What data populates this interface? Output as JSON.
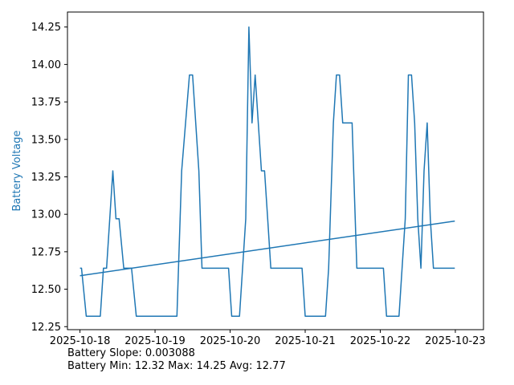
{
  "chart_data": {
    "type": "line",
    "xlabel": "",
    "ylabel": "Battery Voltage",
    "ylim": [
      12.23,
      14.35
    ],
    "xlim": [
      "2025-10-17 20:00",
      "2025-10-23 09:00"
    ],
    "x_ticks": [
      "2025-10-18",
      "2025-10-19",
      "2025-10-20",
      "2025-10-21",
      "2025-10-22",
      "2025-10-23"
    ],
    "y_ticks": [
      "12.25",
      "12.50",
      "12.75",
      "13.00",
      "13.25",
      "13.50",
      "13.75",
      "14.00",
      "14.25"
    ],
    "grid": false,
    "line_color": "#1f77b4",
    "series": [
      {
        "points": [
          [
            "2025-10-18 00:00",
            12.64
          ],
          [
            "2025-10-18 00:30",
            12.64
          ],
          [
            "2025-10-18 02:00",
            12.32
          ],
          [
            "2025-10-18 06:30",
            12.32
          ],
          [
            "2025-10-18 07:30",
            12.64
          ],
          [
            "2025-10-18 08:30",
            12.64
          ],
          [
            "2025-10-18 10:30",
            13.29
          ],
          [
            "2025-10-18 11:30",
            12.97
          ],
          [
            "2025-10-18 12:30",
            12.97
          ],
          [
            "2025-10-18 14:00",
            12.64
          ],
          [
            "2025-10-18 16:30",
            12.64
          ],
          [
            "2025-10-18 18:00",
            12.32
          ],
          [
            "2025-10-19 07:00",
            12.32
          ],
          [
            "2025-10-19 08:30",
            13.29
          ],
          [
            "2025-10-19 11:00",
            13.93
          ],
          [
            "2025-10-19 12:00",
            13.93
          ],
          [
            "2025-10-19 14:00",
            13.29
          ],
          [
            "2025-10-19 15:00",
            12.64
          ],
          [
            "2025-10-19 23:30",
            12.64
          ],
          [
            "2025-10-20 00:30",
            12.32
          ],
          [
            "2025-10-20 03:00",
            12.32
          ],
          [
            "2025-10-20 05:00",
            12.97
          ],
          [
            "2025-10-20 06:00",
            14.25
          ],
          [
            "2025-10-20 07:00",
            13.61
          ],
          [
            "2025-10-20 08:00",
            13.93
          ],
          [
            "2025-10-20 10:00",
            13.29
          ],
          [
            "2025-10-20 11:00",
            13.29
          ],
          [
            "2025-10-20 12:00",
            12.97
          ],
          [
            "2025-10-20 13:00",
            12.64
          ],
          [
            "2025-10-20 23:00",
            12.64
          ],
          [
            "2025-10-21 00:00",
            12.32
          ],
          [
            "2025-10-21 06:30",
            12.32
          ],
          [
            "2025-10-21 07:30",
            12.64
          ],
          [
            "2025-10-21 09:00",
            13.61
          ],
          [
            "2025-10-21 10:00",
            13.93
          ],
          [
            "2025-10-21 11:00",
            13.93
          ],
          [
            "2025-10-21 12:00",
            13.61
          ],
          [
            "2025-10-21 15:00",
            13.61
          ],
          [
            "2025-10-21 16:00",
            12.97
          ],
          [
            "2025-10-21 16:30",
            12.64
          ],
          [
            "2025-10-22 01:00",
            12.64
          ],
          [
            "2025-10-22 02:00",
            12.32
          ],
          [
            "2025-10-22 06:00",
            12.32
          ],
          [
            "2025-10-22 08:00",
            12.97
          ],
          [
            "2025-10-22 09:00",
            13.93
          ],
          [
            "2025-10-22 10:00",
            13.93
          ],
          [
            "2025-10-22 11:00",
            13.61
          ],
          [
            "2025-10-22 12:00",
            12.97
          ],
          [
            "2025-10-22 13:00",
            12.64
          ],
          [
            "2025-10-22 14:00",
            13.29
          ],
          [
            "2025-10-22 15:00",
            13.61
          ],
          [
            "2025-10-22 16:00",
            12.97
          ],
          [
            "2025-10-22 17:00",
            12.64
          ],
          [
            "2025-10-22 23:50",
            12.64
          ]
        ]
      },
      {
        "points": [
          [
            "2025-10-18 00:00",
            12.59
          ],
          [
            "2025-10-22 23:50",
            12.955
          ]
        ]
      }
    ]
  },
  "captions": {
    "slope": "Battery Slope: 0.003088",
    "stats": "Battery Min: 12.32 Max: 14.25 Avg: 12.77"
  }
}
